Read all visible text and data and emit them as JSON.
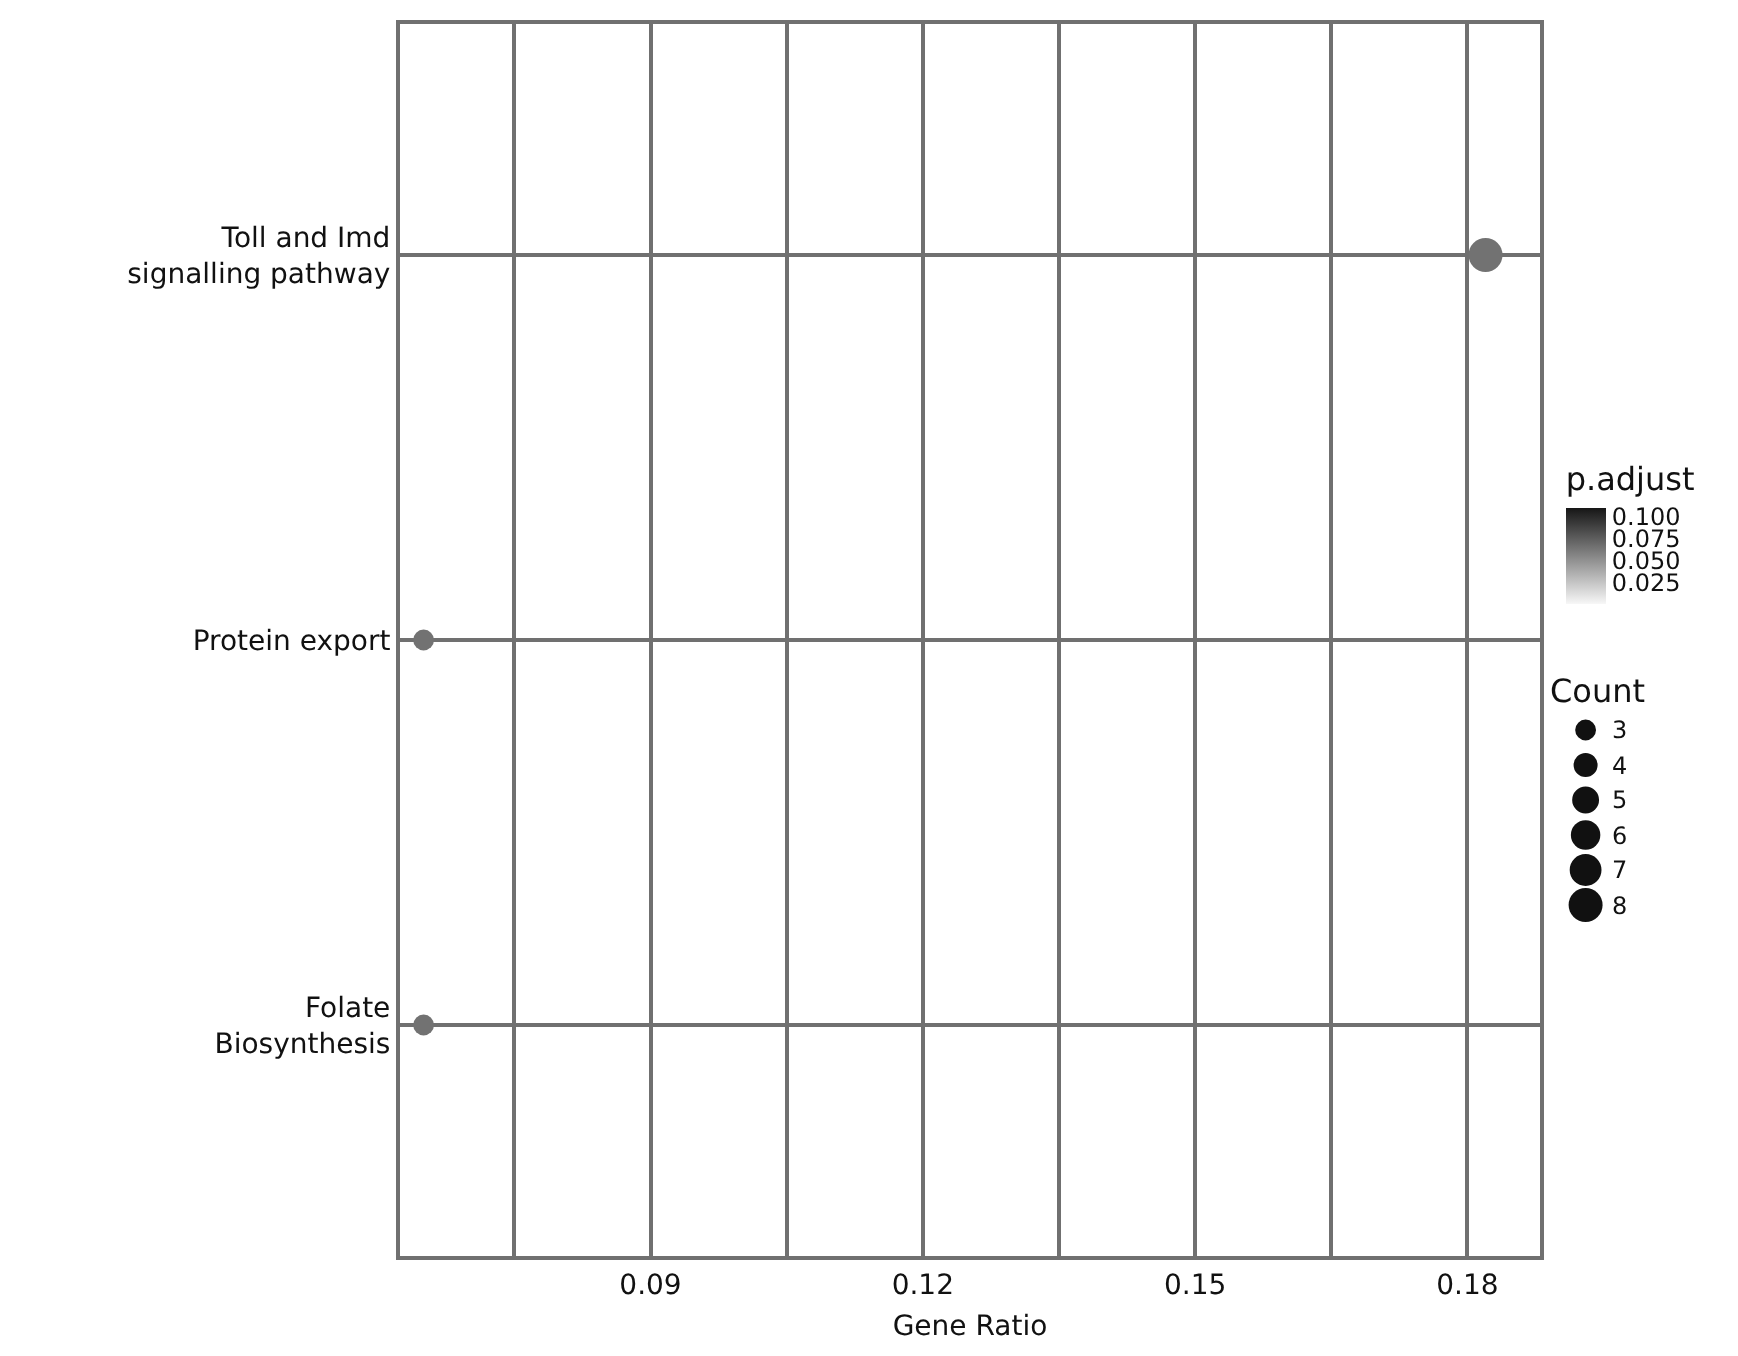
{
  "chart_data": {
    "type": "bubble",
    "orientation": "horizontal",
    "xlabel": "Gene Ratio",
    "categories": [
      "Toll and Imd signalling pathway",
      "Protein export",
      "Folate Biosynthesis"
    ],
    "values": [
      0.182,
      0.065,
      0.065
    ],
    "sizes": [
      8,
      3,
      3
    ],
    "cvalues": [
      0.065,
      0.065,
      0.065
    ],
    "xlim": [
      0.0624,
      0.188
    ],
    "xticks": [
      {
        "value": 0.075,
        "label": null
      },
      0.09,
      {
        "value": 0.105,
        "label": null
      },
      0.12,
      {
        "value": 0.135,
        "label": null
      },
      0.15,
      {
        "value": 0.165,
        "label": null
      },
      0.18
    ],
    "clabel": "p.adjust",
    "clim": [
      0,
      0.11
    ],
    "cticks": [
      0.025,
      {
        "value": 0.05,
        "label": "0.050"
      },
      0.075,
      {
        "value": 0.1,
        "label": "0.100"
      }
    ],
    "legend_title": "Count",
    "size_legend": [
      3,
      4,
      5,
      6,
      7,
      8
    ],
    "grid": true
  }
}
